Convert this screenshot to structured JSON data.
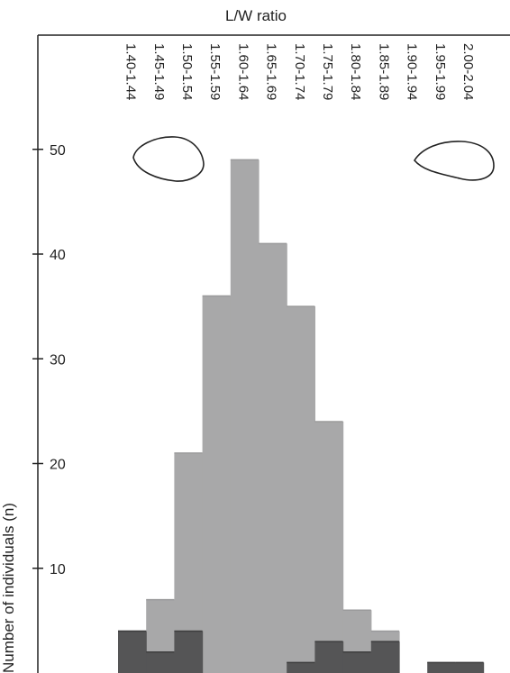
{
  "chart_data": {
    "type": "bar",
    "title": "L/W ratio",
    "xlabel": "L/W ratio",
    "ylabel": "Number of individuals (n)",
    "categories": [
      "1.40-1.44",
      "1.45-1.49",
      "1.50-1.54",
      "1.55-1.59",
      "1.60-1.64",
      "1.65-1.69",
      "1.70-1.74",
      "1.75-1.79",
      "1.80-1.84",
      "1.85-1.89",
      "1.90-1.94",
      "1.95-1.99",
      "2.00-2.04"
    ],
    "series": [
      {
        "values": [
          4,
          7,
          21,
          36,
          49,
          41,
          35,
          24,
          6,
          4,
          0,
          0,
          0
        ],
        "color": "#a8a8a9"
      },
      {
        "values": [
          4,
          2,
          4,
          0,
          0,
          0,
          1,
          3,
          2,
          3,
          0,
          1,
          1
        ],
        "color": "#555556"
      }
    ],
    "yticks": [
      10,
      20,
      30,
      40,
      50
    ],
    "ylim": [
      0,
      56
    ],
    "overlay": true,
    "grid": false,
    "outline_icons": [
      "round-shape-icon",
      "elongated-shape-icon"
    ]
  }
}
